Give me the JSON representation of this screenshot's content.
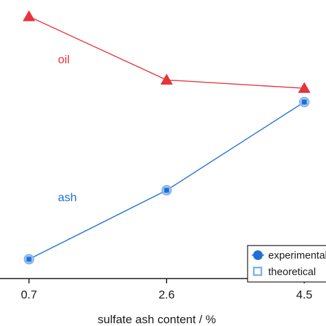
{
  "chart_data": {
    "type": "line",
    "x": [
      0.7,
      2.6,
      4.5
    ],
    "xlabel": "sulfate ash content / %",
    "x_tick_labels": [
      "0.7",
      "2.6",
      "4.5"
    ],
    "xlim": [
      0.3,
      4.8
    ],
    "ylim": [
      0,
      100
    ],
    "series": [
      {
        "name": "oil",
        "values": [
          95,
          72,
          69
        ],
        "color": "#e8333a",
        "marker": "triangle",
        "label_anchor": [
          1.1,
          78
        ]
      },
      {
        "name": "ash",
        "values": [
          7,
          32,
          64
        ],
        "color": "#1f6fd6",
        "marker": "circle-with-square",
        "label_anchor": [
          1.1,
          28
        ]
      }
    ],
    "legend": {
      "placement": "bottom-right",
      "entries": [
        {
          "label": "experimental",
          "marker": "filled-circle",
          "color": "#1f6fd6"
        },
        {
          "label": "theoretical",
          "marker": "open-square",
          "color": "#7ab0ee"
        }
      ]
    },
    "grid": false
  },
  "colors": {
    "oil": "#e8333a",
    "ash": "#1f6fd6",
    "theoretical": "#7ab0ee",
    "axis": "#1a1a1a"
  }
}
